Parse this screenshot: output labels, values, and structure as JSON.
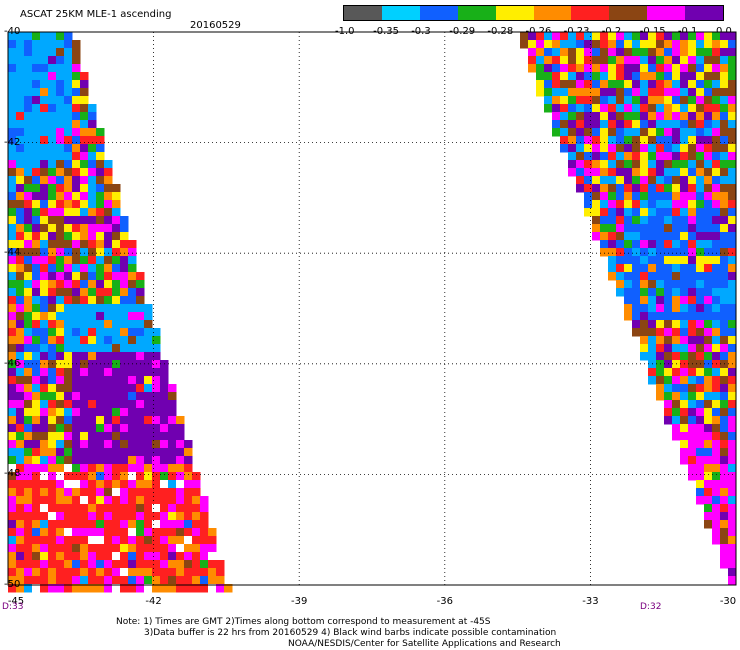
{
  "header": {
    "title": "ASCAT 25KM MLE-1 ascending",
    "date": "20160529"
  },
  "colorbar": {
    "colors": [
      "#585858",
      "#00d0ff",
      "#1060ff",
      "#18b018",
      "#ffee00",
      "#ff8c00",
      "#ff2020",
      "#8b4513",
      "#ff00ff",
      "#7000b0"
    ],
    "labels": [
      "-1.0",
      "-0.35",
      "-0.3",
      "-0.29",
      "-0.28",
      "-0.26",
      "-0.23",
      "-0.2",
      "-0.15",
      "-0.1",
      "0.0"
    ]
  },
  "map": {
    "lat_labels": [
      "-40",
      "-42",
      "-44",
      "-46",
      "-48",
      "-50"
    ],
    "lon_labels": [
      "-45",
      "-42",
      "-39",
      "-36",
      "-33",
      "-30"
    ],
    "lat_range": [
      -50,
      -40
    ],
    "lon_range": [
      -45,
      -30
    ],
    "time_labels": [
      "D:33",
      "D:32"
    ]
  },
  "notes": {
    "line1": "Note: 1) Times are GMT 2)Times along bottom correspond to measurement at -45S",
    "line2": "3)Data buffer is 22 hrs from 20160529 4) Black wind barbs indicate possible contamination",
    "line3": "NOAA/NESDIS/Center for Satellite Applications and Research"
  }
}
